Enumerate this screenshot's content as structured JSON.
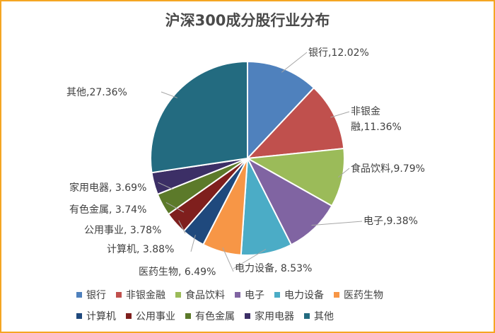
{
  "chart_data": {
    "type": "pie",
    "title": "沪深300成分股行业分布",
    "categories": [
      "银行",
      "非银金融",
      "食品饮料",
      "电子",
      "电力设备",
      "医药生物",
      "计算机",
      "公用事业",
      "有色金属",
      "家用电器",
      "其他"
    ],
    "values": [
      12.02,
      11.36,
      9.79,
      9.38,
      8.53,
      6.49,
      3.88,
      3.78,
      3.74,
      3.69,
      27.36
    ],
    "unit": "%",
    "data_labels": [
      "银行,12.02%",
      "非银金融,11.36%",
      "食品饮料,9.79%",
      "电子,9.38%",
      "电力设备, 8.53%",
      "医药生物, 6.49%",
      "计算机, 3.88%",
      "公用事业, 3.78%",
      "有色金属, 3.74%",
      "家用电器, 3.69%",
      "其他,27.36%"
    ],
    "colors": [
      "#4F81BD",
      "#C0504D",
      "#9BBB59",
      "#8064A2",
      "#4BACC6",
      "#F79646",
      "#1F497D",
      "#7F1F1D",
      "#5C7A2A",
      "#3C2F66",
      "#236B80"
    ],
    "legend_position": "bottom"
  }
}
